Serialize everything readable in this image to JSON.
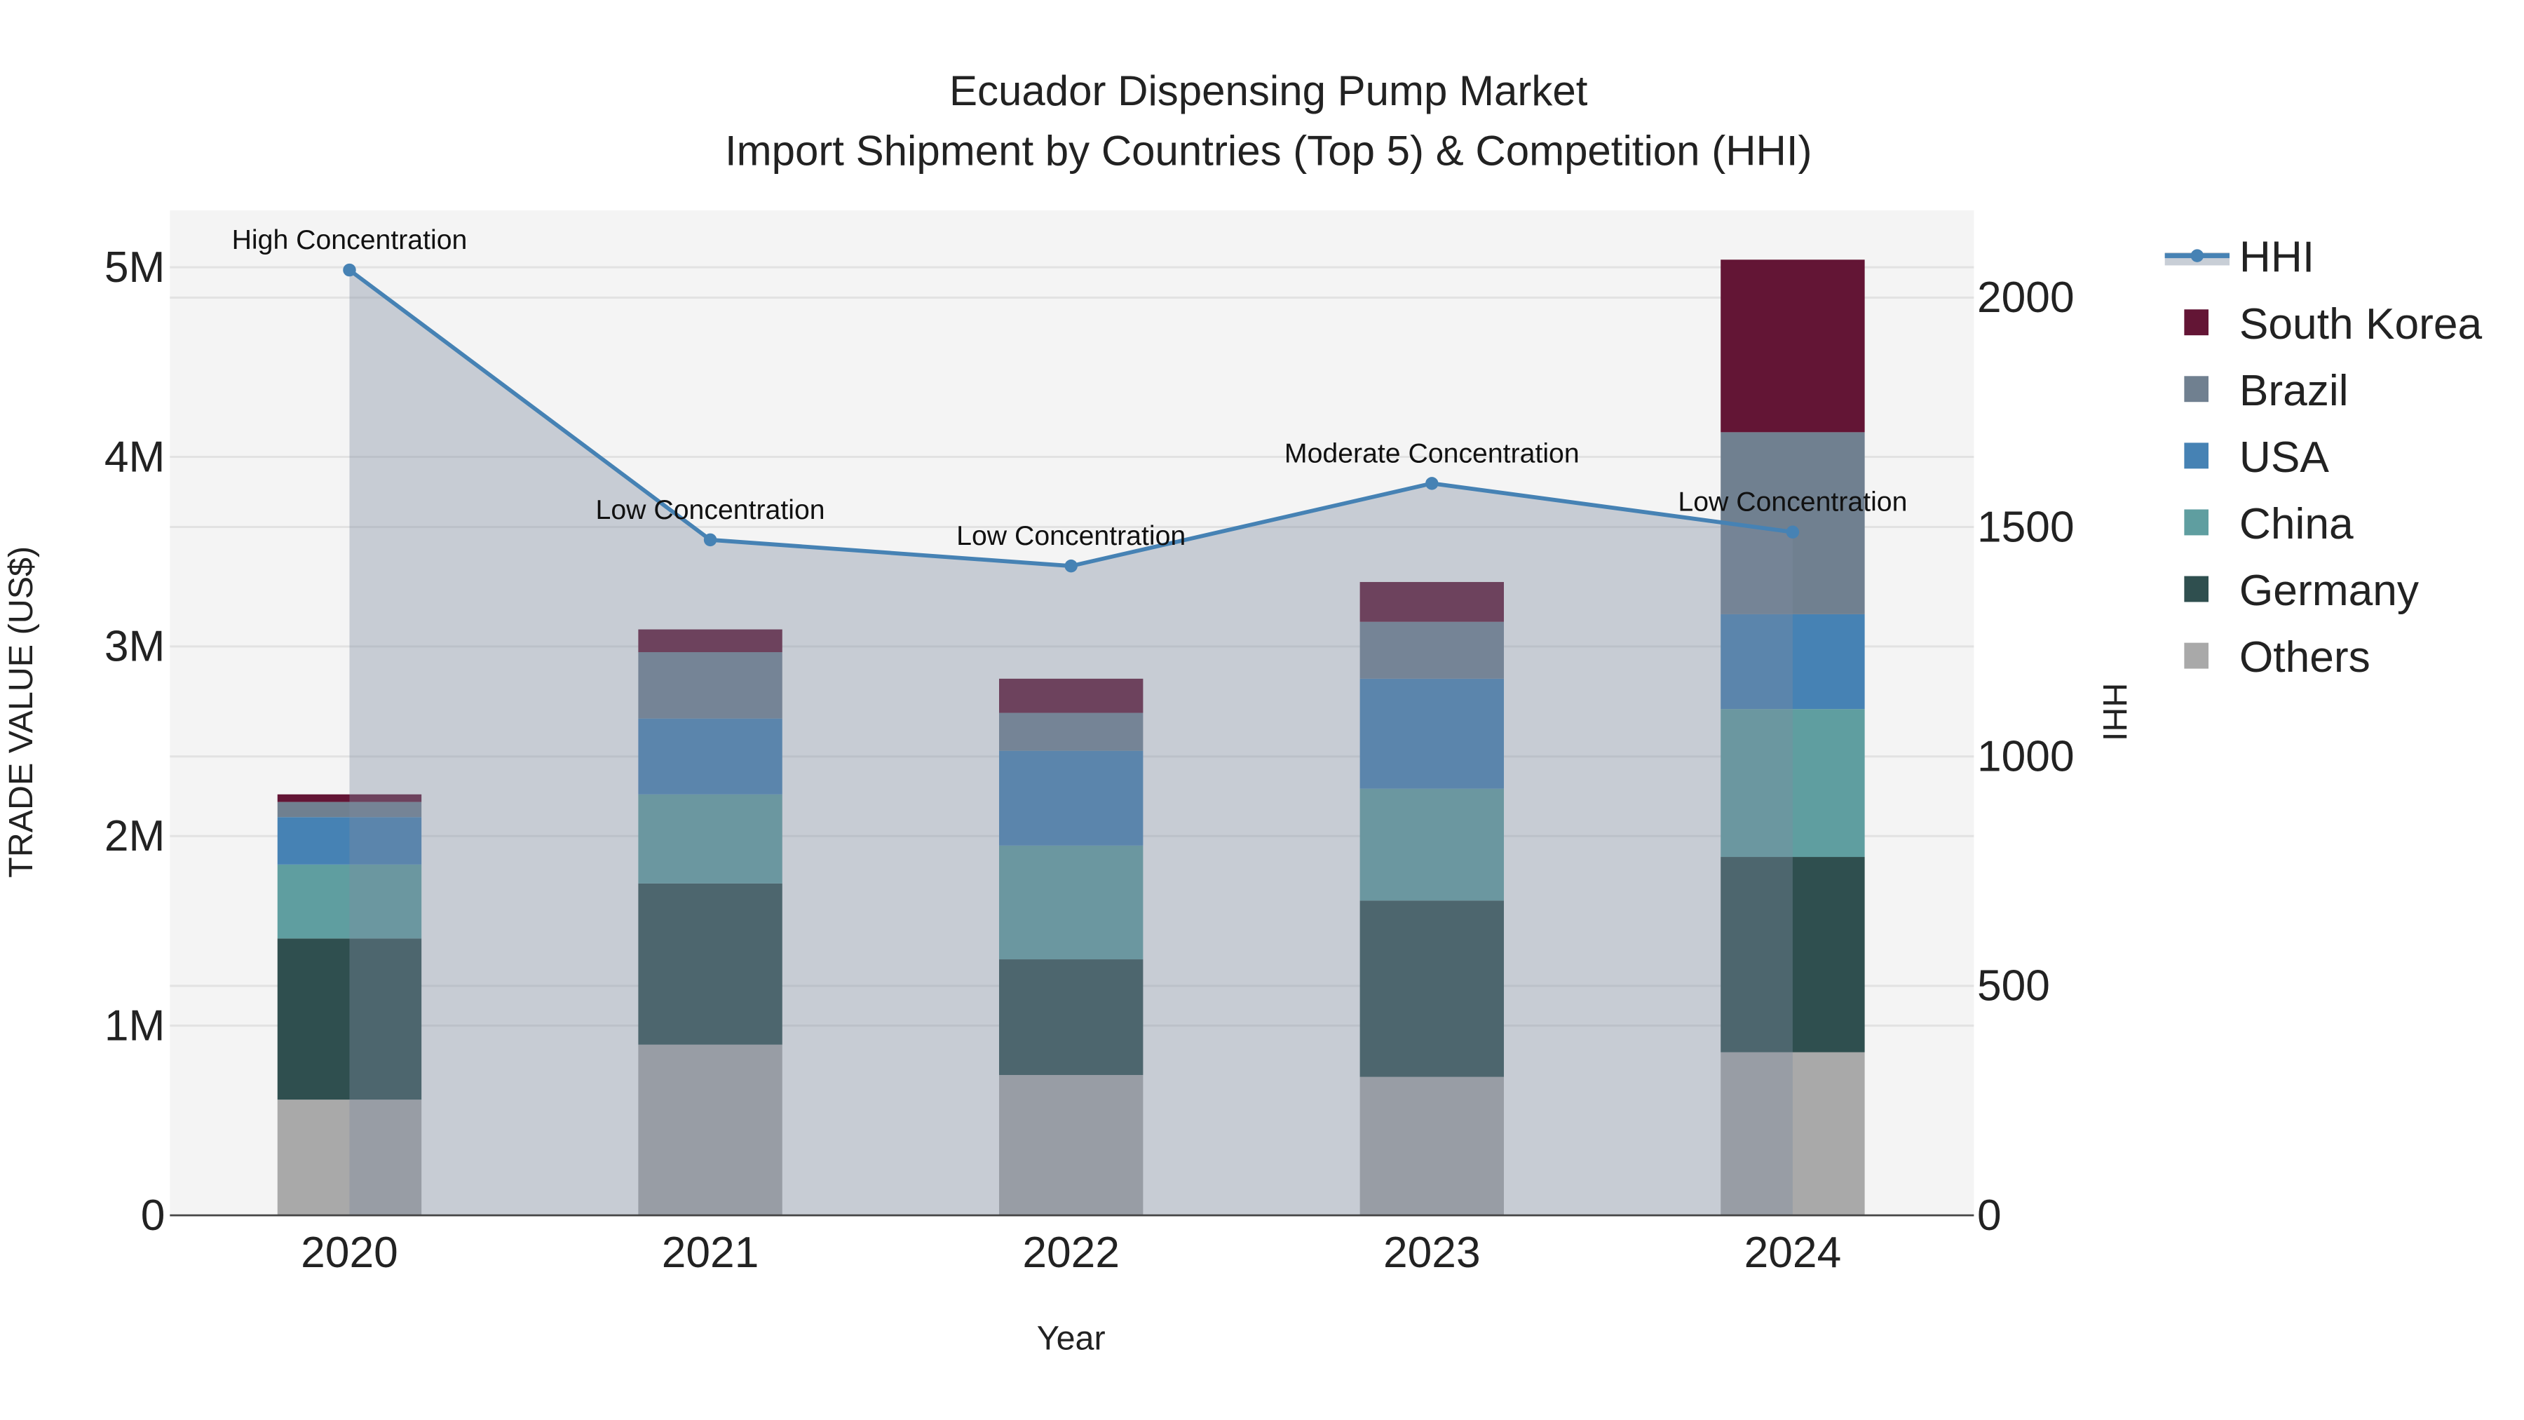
{
  "chart_data": {
    "type": "bar",
    "stacked": true,
    "title": "Ecuador Dispensing Pump Market",
    "subtitle": "Import Shipment by Countries (Top 5) & Competition (HHI)",
    "xlabel": "Year",
    "ylabel": "TRADE VALUE (US$)",
    "y2label": "HHI",
    "categories": [
      "2020",
      "2021",
      "2022",
      "2023",
      "2024"
    ],
    "ylim": [
      0,
      5300000
    ],
    "y2lim": [
      0,
      2190
    ],
    "yticks": [
      0,
      1000000,
      2000000,
      3000000,
      4000000,
      5000000
    ],
    "ytick_labels": [
      "0",
      "1M",
      "2M",
      "3M",
      "4M",
      "5M"
    ],
    "y2ticks": [
      0,
      500,
      1000,
      1500,
      2000
    ],
    "y2tick_labels": [
      "0",
      "500",
      "1000",
      "1500",
      "2000"
    ],
    "grid": true,
    "legend_position": "right",
    "series": [
      {
        "name": "Others",
        "color": "#a9a9a9",
        "values": [
          610000,
          900000,
          740000,
          730000,
          860000
        ]
      },
      {
        "name": "Germany",
        "color": "#2f4f4f",
        "values": [
          850000,
          850000,
          610000,
          930000,
          1030000
        ]
      },
      {
        "name": "China",
        "color": "#5f9ea0",
        "values": [
          390000,
          470000,
          600000,
          590000,
          780000
        ]
      },
      {
        "name": "USA",
        "color": "#4682b4",
        "values": [
          250000,
          400000,
          500000,
          580000,
          500000
        ]
      },
      {
        "name": "Brazil",
        "color": "#708090",
        "values": [
          80000,
          350000,
          200000,
          300000,
          960000
        ]
      },
      {
        "name": "South Korea",
        "color": "#631535",
        "values": [
          40000,
          120000,
          180000,
          210000,
          910000
        ]
      }
    ],
    "hhi": {
      "name": "HHI",
      "color": "#4682b4",
      "values": [
        2060,
        1472,
        1415,
        1595,
        1489
      ],
      "annotations": [
        "High Concentration",
        "Low Concentration",
        "Low Concentration",
        "Moderate Concentration",
        "Low Concentration"
      ]
    },
    "legend_order": [
      "HHI",
      "South Korea",
      "Brazil",
      "USA",
      "China",
      "Germany",
      "Others"
    ]
  }
}
